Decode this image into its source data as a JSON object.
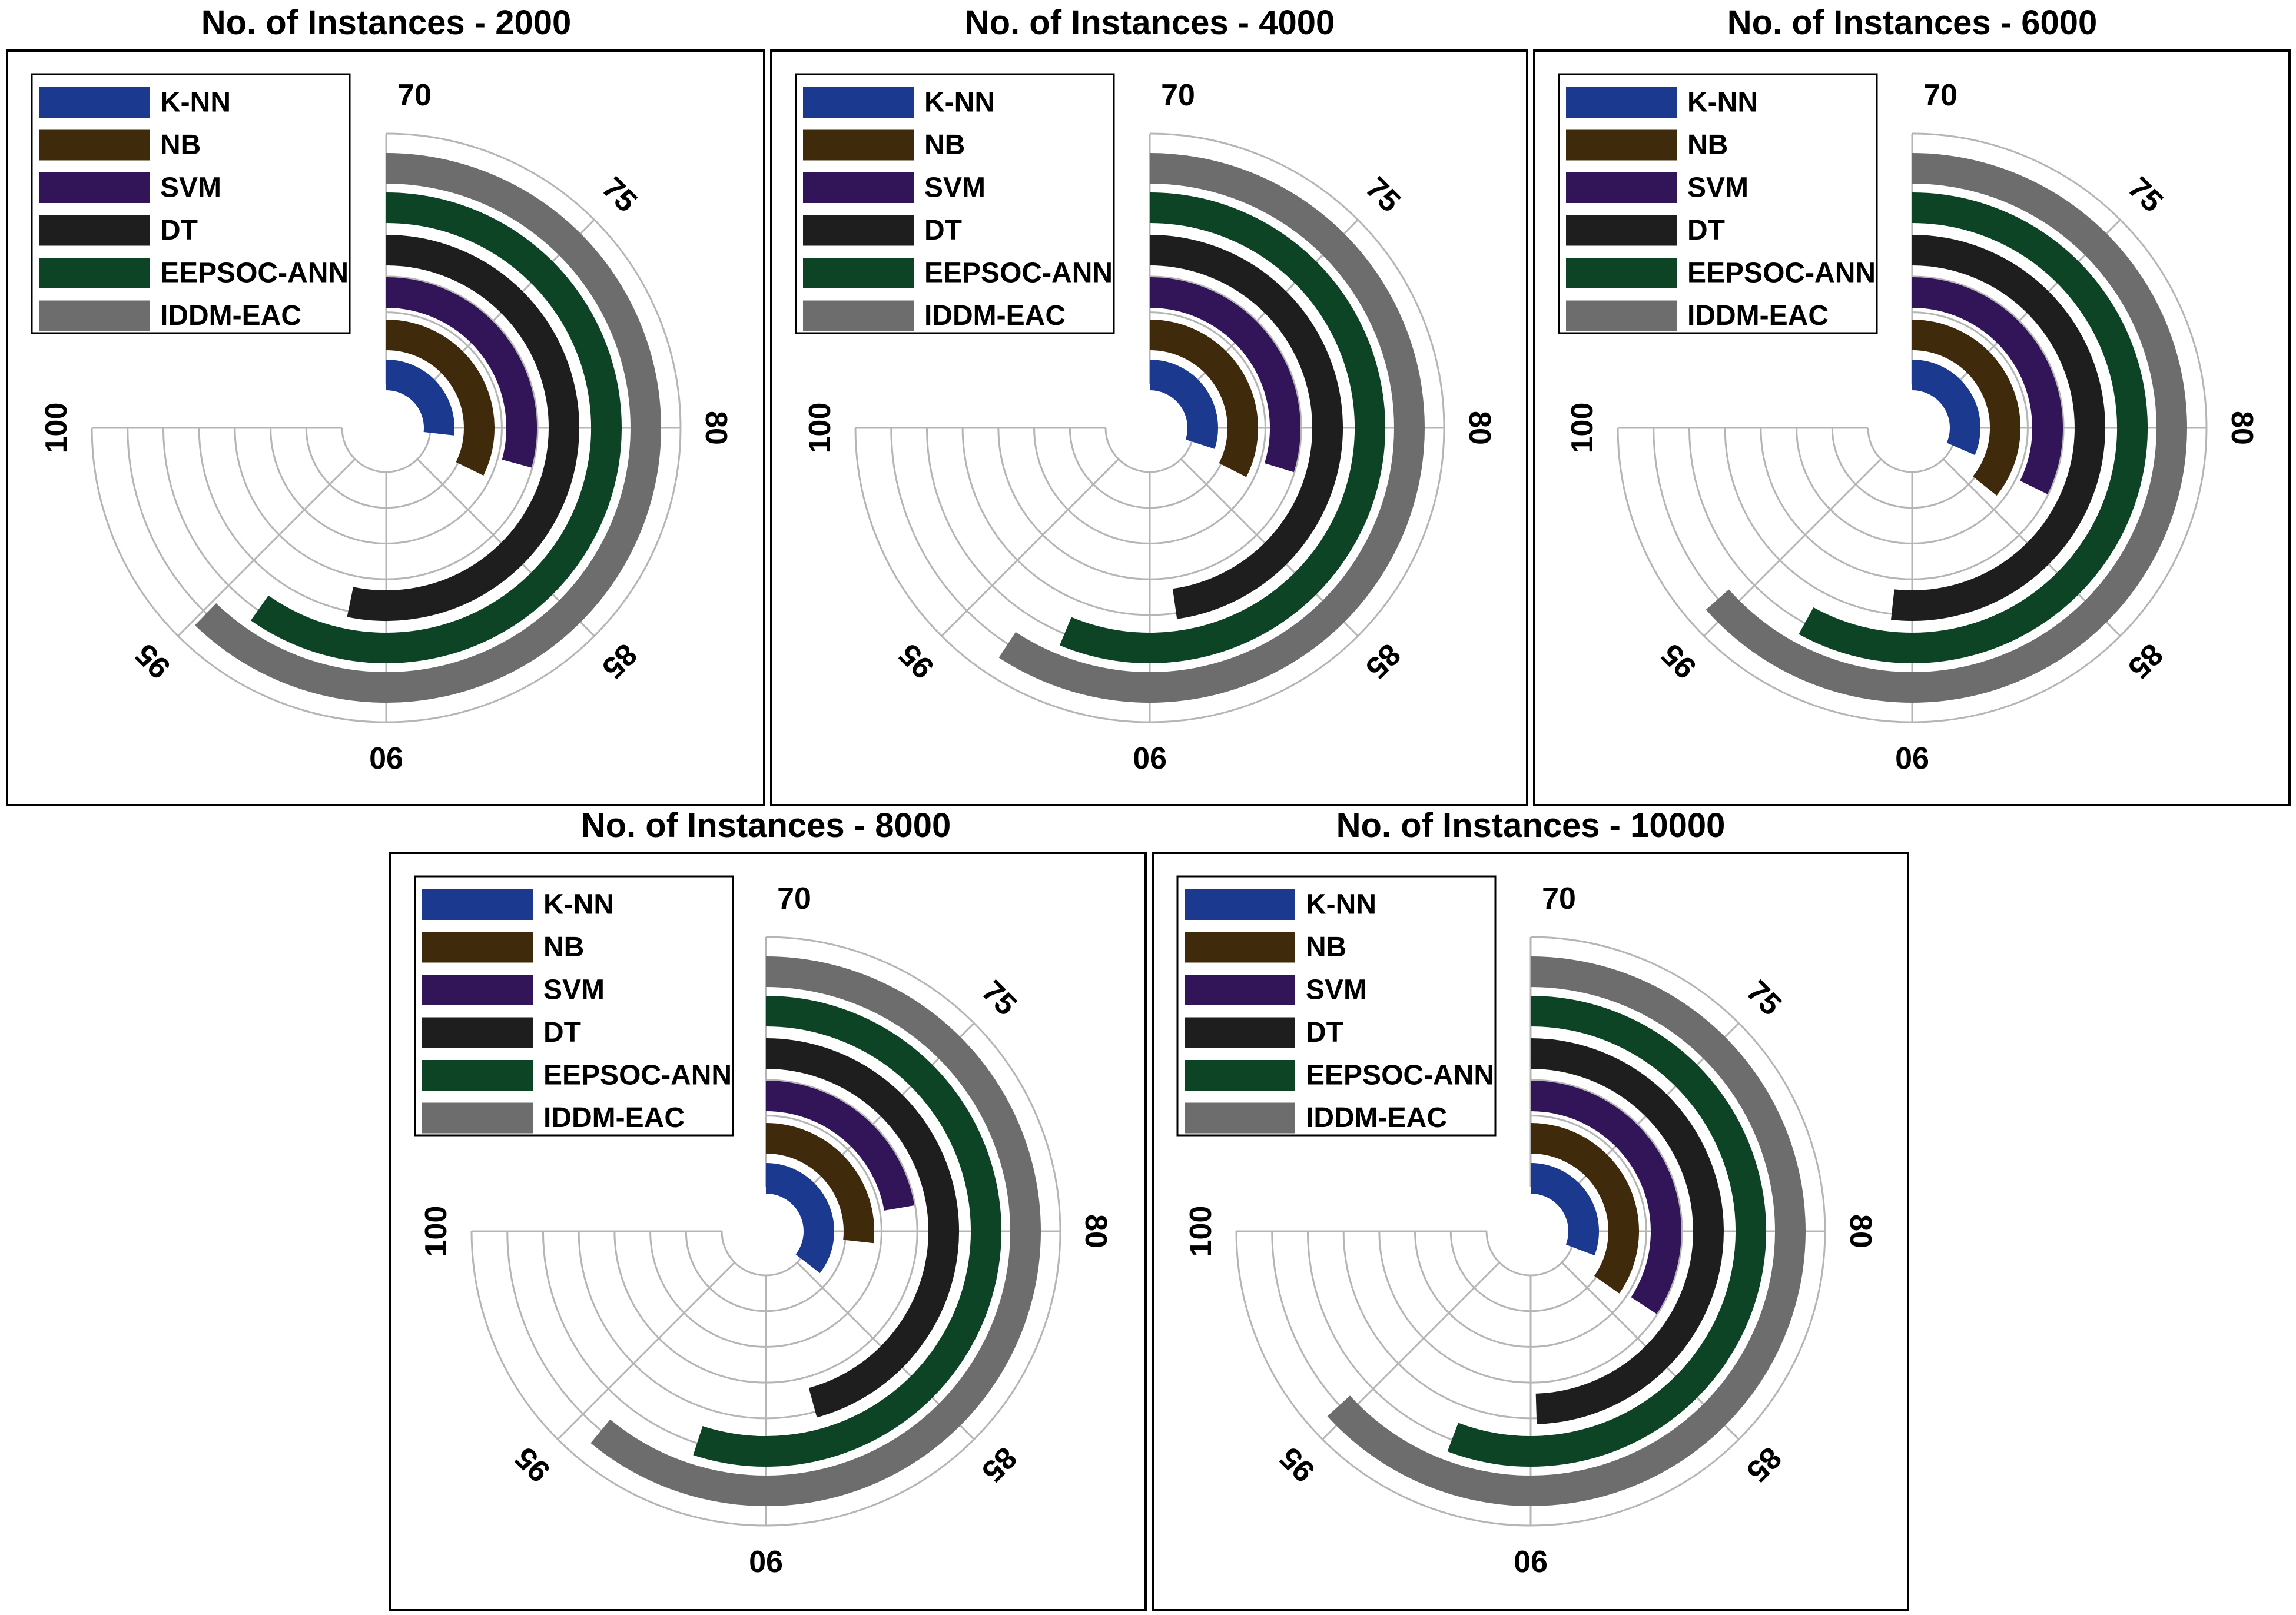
{
  "chart_data": [
    {
      "type": "radial-bar",
      "title": "No. of Instances - 2000",
      "axis_range": [
        70,
        100
      ],
      "ticks": [
        "70",
        "75",
        "80",
        "85",
        "90",
        "95",
        "100"
      ],
      "legend": "top-left",
      "series": [
        {
          "name": "K-NN",
          "value": 80.7,
          "color": "#1b3a8f"
        },
        {
          "name": "NB",
          "value": 82.9,
          "color": "#3f2a0c"
        },
        {
          "name": "SVM",
          "value": 81.7,
          "color": "#321459"
        },
        {
          "name": "DT",
          "value": 91.3,
          "color": "#1e1e1e"
        },
        {
          "name": "EEPSOC-ANN",
          "value": 93.9,
          "color": "#0e4426"
        },
        {
          "name": "IDDM-EAC",
          "value": 94.9,
          "color": "#6d6d6d"
        }
      ]
    },
    {
      "type": "radial-bar",
      "title": "No. of Instances - 4000",
      "axis_range": [
        70,
        100
      ],
      "ticks": [
        "70",
        "75",
        "80",
        "85",
        "90",
        "95",
        "100"
      ],
      "legend": "top-left",
      "series": [
        {
          "name": "K-NN",
          "value": 82.0,
          "color": "#1b3a8f"
        },
        {
          "name": "NB",
          "value": 83.0,
          "color": "#3f2a0c"
        },
        {
          "name": "SVM",
          "value": 81.9,
          "color": "#321459"
        },
        {
          "name": "DT",
          "value": 89.1,
          "color": "#1e1e1e"
        },
        {
          "name": "EEPSOC-ANN",
          "value": 92.5,
          "color": "#0e4426"
        },
        {
          "name": "IDDM-EAC",
          "value": 93.7,
          "color": "#6d6d6d"
        }
      ]
    },
    {
      "type": "radial-bar",
      "title": "No. of Instances - 6000",
      "axis_range": [
        70,
        100
      ],
      "ticks": [
        "70",
        "75",
        "80",
        "85",
        "90",
        "95",
        "100"
      ],
      "legend": "top-left",
      "series": [
        {
          "name": "K-NN",
          "value": 82.6,
          "color": "#1b3a8f"
        },
        {
          "name": "NB",
          "value": 84.3,
          "color": "#3f2a0c"
        },
        {
          "name": "SVM",
          "value": 82.9,
          "color": "#321459"
        },
        {
          "name": "DT",
          "value": 90.7,
          "color": "#1e1e1e"
        },
        {
          "name": "EEPSOC-ANN",
          "value": 93.2,
          "color": "#0e4426"
        },
        {
          "name": "IDDM-EAC",
          "value": 95.4,
          "color": "#6d6d6d"
        }
      ]
    },
    {
      "type": "radial-bar",
      "title": "No. of Instances - 8000",
      "axis_range": [
        70,
        100
      ],
      "ticks": [
        "70",
        "75",
        "80",
        "85",
        "90",
        "95",
        "100"
      ],
      "legend": "top-left",
      "series": [
        {
          "name": "K-NN",
          "value": 84.2,
          "color": "#1b3a8f"
        },
        {
          "name": "NB",
          "value": 80.7,
          "color": "#3f2a0c"
        },
        {
          "name": "SVM",
          "value": 78.9,
          "color": "#321459"
        },
        {
          "name": "DT",
          "value": 88.3,
          "color": "#1e1e1e"
        },
        {
          "name": "EEPSOC-ANN",
          "value": 92.0,
          "color": "#0e4426"
        },
        {
          "name": "IDDM-EAC",
          "value": 94.4,
          "color": "#6d6d6d"
        }
      ]
    },
    {
      "type": "radial-bar",
      "title": "No. of Instances - 10000",
      "axis_range": [
        70,
        100
      ],
      "ticks": [
        "70",
        "75",
        "80",
        "85",
        "90",
        "95",
        "100"
      ],
      "legend": "top-left",
      "series": [
        {
          "name": "K-NN",
          "value": 82.3,
          "color": "#1b3a8f"
        },
        {
          "name": "NB",
          "value": 83.9,
          "color": "#3f2a0c"
        },
        {
          "name": "SVM",
          "value": 83.7,
          "color": "#321459"
        },
        {
          "name": "DT",
          "value": 89.8,
          "color": "#1e1e1e"
        },
        {
          "name": "EEPSOC-ANN",
          "value": 92.3,
          "color": "#0e4426"
        },
        {
          "name": "IDDM-EAC",
          "value": 95.3,
          "color": "#6d6d6d"
        }
      ]
    }
  ]
}
